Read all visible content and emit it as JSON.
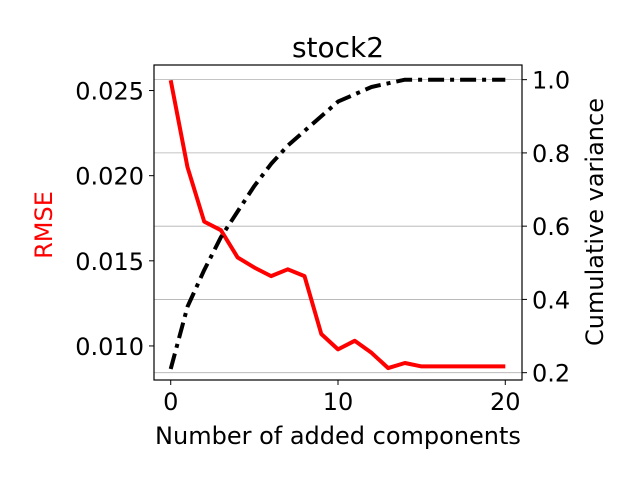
{
  "chart_data": {
    "type": "line",
    "title": "stock2",
    "xlabel": "Number of added components",
    "ylabel_left": "RMSE",
    "ylabel_right": "Cumulative variance",
    "xlim": [
      -1,
      21
    ],
    "ylim_left": [
      0.008,
      0.0265
    ],
    "ylim_right": [
      0.18,
      1.04
    ],
    "x_ticks": [
      0,
      10,
      20
    ],
    "x_tick_labels": [
      "0",
      "10",
      "20"
    ],
    "y_left_ticks": [
      0.01,
      0.015,
      0.02,
      0.025
    ],
    "y_left_tick_labels": [
      "0.010",
      "0.015",
      "0.020",
      "0.025"
    ],
    "y_right_ticks": [
      0.2,
      0.4,
      0.6,
      0.8,
      1.0
    ],
    "y_right_tick_labels": [
      "0.2",
      "0.4",
      "0.6",
      "0.8",
      "1.0"
    ],
    "grid": "horizontal lines at right-axis ticks",
    "x": [
      0,
      1,
      2,
      3,
      4,
      5,
      6,
      7,
      8,
      9,
      10,
      11,
      12,
      13,
      14,
      15,
      16,
      17,
      18,
      19,
      20
    ],
    "series": [
      {
        "axis": "left",
        "color": "#ff0000",
        "style": "solid",
        "values": [
          0.0256,
          0.0205,
          0.0173,
          0.0168,
          0.0152,
          0.0146,
          0.0141,
          0.0145,
          0.0141,
          0.0107,
          0.0098,
          0.0103,
          0.0096,
          0.0087,
          0.009,
          0.0088,
          0.0088,
          0.0088,
          0.0088,
          0.0088,
          0.0088
        ]
      },
      {
        "axis": "right",
        "color": "#000000",
        "style": "dashdot",
        "values": [
          0.21,
          0.38,
          0.48,
          0.57,
          0.64,
          0.71,
          0.77,
          0.82,
          0.86,
          0.9,
          0.94,
          0.96,
          0.98,
          0.99,
          1.0,
          1.0,
          1.0,
          1.0,
          1.0,
          1.0,
          1.0
        ]
      }
    ]
  }
}
